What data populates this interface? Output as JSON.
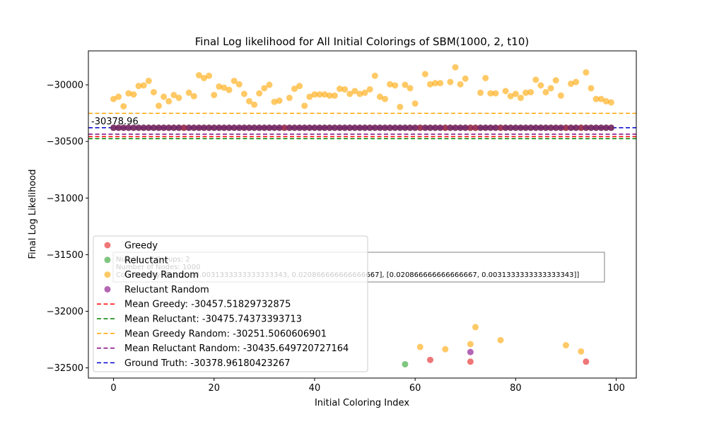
{
  "chart_data": {
    "type": "scatter",
    "title": "Final Log likelihood for All Initial Colorings of SBM(1000, 2, t10)",
    "xlabel": "Initial Coloring Index",
    "ylabel": "Final Log Likelihood",
    "xlim": [
      -5,
      104
    ],
    "ylim": [
      -32590,
      -29700
    ],
    "xticks": [
      0,
      20,
      40,
      60,
      80,
      100
    ],
    "yticks": [
      -30000,
      -30500,
      -31000,
      -31500,
      -32000,
      -32500
    ],
    "grid": false,
    "legend_position": "lower-left",
    "series": [
      {
        "name": "Greedy",
        "kind": "points",
        "color": "#e41a1c",
        "x": [
          0,
          1,
          2,
          3,
          4,
          5,
          6,
          7,
          8,
          9,
          10,
          11,
          12,
          13,
          14,
          15,
          16,
          17,
          18,
          19,
          20,
          21,
          22,
          23,
          24,
          25,
          26,
          27,
          28,
          29,
          30,
          31,
          32,
          33,
          34,
          35,
          36,
          37,
          38,
          39,
          40,
          41,
          42,
          43,
          44,
          45,
          46,
          47,
          48,
          49,
          50,
          51,
          52,
          53,
          54,
          55,
          56,
          57,
          58,
          59,
          60,
          61,
          62,
          63,
          64,
          65,
          66,
          67,
          68,
          69,
          70,
          71,
          72,
          73,
          74,
          75,
          76,
          77,
          78,
          79,
          80,
          81,
          82,
          83,
          84,
          85,
          86,
          87,
          88,
          89,
          90,
          91,
          92,
          93,
          94,
          95,
          96,
          97,
          98,
          99,
          63,
          71,
          94
        ],
        "y": [
          -30379,
          -30379,
          -30379,
          -30379,
          -30379,
          -30379,
          -30379,
          -30379,
          -30379,
          -30379,
          -30379,
          -30379,
          -30379,
          -30379,
          -30379,
          -30379,
          -30379,
          -30379,
          -30379,
          -30379,
          -30379,
          -30379,
          -30379,
          -30379,
          -30379,
          -30379,
          -30379,
          -30379,
          -30379,
          -30379,
          -30379,
          -30379,
          -30379,
          -30379,
          -30379,
          -30379,
          -30379,
          -30379,
          -30379,
          -30379,
          -30379,
          -30379,
          -30379,
          -30379,
          -30379,
          -30379,
          -30379,
          -30379,
          -30379,
          -30379,
          -30379,
          -30379,
          -30379,
          -30379,
          -30379,
          -30379,
          -30379,
          -30379,
          -30379,
          -30379,
          -30379,
          -30379,
          -30379,
          -30379,
          -30379,
          -30379,
          -30379,
          -30379,
          -30379,
          -30379,
          -30379,
          -30379,
          -30379,
          -30379,
          -30379,
          -30379,
          -30379,
          -30379,
          -30379,
          -30379,
          -30379,
          -30379,
          -30379,
          -30379,
          -30379,
          -30379,
          -30379,
          -30379,
          -30379,
          -30379,
          -30379,
          -30379,
          -30379,
          -30379,
          -30379,
          -30379,
          -30379,
          -30379,
          -30379,
          -30379,
          -32430,
          -32445,
          -32445
        ]
      },
      {
        "name": "Reluctant",
        "kind": "points",
        "color": "#2ca02c",
        "x": [
          0,
          1,
          2,
          3,
          4,
          5,
          6,
          7,
          8,
          9,
          10,
          11,
          12,
          13,
          14,
          15,
          16,
          17,
          18,
          19,
          20,
          21,
          22,
          23,
          24,
          25,
          26,
          27,
          28,
          29,
          30,
          31,
          32,
          33,
          34,
          35,
          36,
          37,
          38,
          39,
          40,
          41,
          42,
          43,
          44,
          45,
          46,
          47,
          48,
          49,
          50,
          51,
          52,
          53,
          54,
          55,
          56,
          57,
          58,
          59,
          60,
          61,
          62,
          63,
          64,
          65,
          66,
          67,
          68,
          69,
          70,
          71,
          72,
          73,
          74,
          75,
          76,
          77,
          78,
          79,
          80,
          81,
          82,
          83,
          84,
          85,
          86,
          87,
          88,
          89,
          90,
          91,
          92,
          93,
          94,
          95,
          96,
          97,
          98,
          99,
          58
        ],
        "y": [
          -30379,
          -30379,
          -30379,
          -30379,
          -30379,
          -30379,
          -30379,
          -30379,
          -30379,
          -30379,
          -30379,
          -30379,
          -30379,
          -30379,
          -30379,
          -30379,
          -30379,
          -30379,
          -30379,
          -30379,
          -30379,
          -30379,
          -30379,
          -30379,
          -30379,
          -30379,
          -30379,
          -30379,
          -30379,
          -30379,
          -30379,
          -30379,
          -30379,
          -30379,
          -30379,
          -30379,
          -30379,
          -30379,
          -30379,
          -30379,
          -30379,
          -30379,
          -30379,
          -30379,
          -30379,
          -30379,
          -30379,
          -30379,
          -30379,
          -30379,
          -30379,
          -30379,
          -30379,
          -30379,
          -30379,
          -30379,
          -30379,
          -30379,
          -30379,
          -30379,
          -30379,
          -30379,
          -30379,
          -30379,
          -30379,
          -30379,
          -30379,
          -30379,
          -30379,
          -30379,
          -30379,
          -30379,
          -30379,
          -30379,
          -30379,
          -30379,
          -30379,
          -30379,
          -30379,
          -30379,
          -30379,
          -30379,
          -30379,
          -30379,
          -30379,
          -30379,
          -30379,
          -30379,
          -30379,
          -30379,
          -30379,
          -30379,
          -30379,
          -30379,
          -30379,
          -30379,
          -30379,
          -30379,
          -30379,
          -30379,
          -32468
        ]
      },
      {
        "name": "Greedy Random",
        "kind": "points",
        "color": "#ffa500",
        "x": [
          0,
          1,
          2,
          3,
          4,
          5,
          6,
          7,
          8,
          9,
          10,
          11,
          12,
          13,
          14,
          15,
          16,
          17,
          18,
          19,
          20,
          21,
          22,
          23,
          24,
          25,
          26,
          27,
          28,
          29,
          30,
          31,
          32,
          33,
          34,
          35,
          36,
          37,
          38,
          39,
          40,
          41,
          42,
          43,
          44,
          45,
          46,
          47,
          48,
          49,
          50,
          51,
          52,
          53,
          54,
          55,
          56,
          57,
          58,
          59,
          60,
          61,
          62,
          63,
          64,
          65,
          66,
          67,
          68,
          69,
          70,
          71,
          72,
          73,
          74,
          75,
          76,
          77,
          78,
          79,
          80,
          81,
          82,
          83,
          84,
          85,
          86,
          87,
          88,
          89,
          90,
          91,
          92,
          93,
          94,
          95,
          96,
          97,
          98,
          99,
          61,
          66,
          71,
          72,
          77,
          90,
          93
        ],
        "y": [
          -30125,
          -30105,
          -30190,
          -30075,
          -30085,
          -30010,
          -30005,
          -29965,
          -30065,
          -30185,
          -30105,
          -30145,
          -30090,
          -30115,
          -30380,
          -30070,
          -30100,
          -29915,
          -29940,
          -29920,
          -30090,
          -30015,
          -30025,
          -30045,
          -29965,
          -29995,
          -30080,
          -30145,
          -30175,
          -30075,
          -30030,
          -30000,
          -30150,
          -30140,
          -30380,
          -30115,
          -30035,
          -30010,
          -30185,
          -30105,
          -30085,
          -30085,
          -30085,
          -30095,
          -30095,
          -30035,
          -30040,
          -30080,
          -30055,
          -30080,
          -30070,
          -30040,
          -29920,
          -30105,
          -30125,
          -29995,
          -30005,
          -30195,
          -30000,
          -30030,
          -30165,
          -30380,
          -29905,
          -29995,
          -29985,
          -29985,
          -30380,
          -29975,
          -29845,
          -29995,
          -29945,
          -30380,
          -30380,
          -30070,
          -29940,
          -30075,
          -30075,
          -30380,
          -30055,
          -30100,
          -30080,
          -30115,
          -30070,
          -30065,
          -29955,
          -30005,
          -30065,
          -30030,
          -29960,
          -30095,
          -30380,
          -29990,
          -29975,
          -30380,
          -29890,
          -30030,
          -30125,
          -30125,
          -30145,
          -30155,
          -32315,
          -32335,
          -32290,
          -32140,
          -32255,
          -32300,
          -32355
        ]
      },
      {
        "name": "Reluctant Random",
        "kind": "points",
        "color": "#800080",
        "x": [
          0,
          1,
          2,
          3,
          4,
          5,
          6,
          7,
          8,
          9,
          10,
          11,
          12,
          13,
          14,
          15,
          16,
          17,
          18,
          19,
          20,
          21,
          22,
          23,
          24,
          25,
          26,
          27,
          28,
          29,
          30,
          31,
          32,
          33,
          34,
          35,
          36,
          37,
          38,
          39,
          40,
          41,
          42,
          43,
          44,
          45,
          46,
          47,
          48,
          49,
          50,
          51,
          52,
          53,
          54,
          55,
          56,
          57,
          58,
          59,
          60,
          61,
          62,
          63,
          64,
          65,
          66,
          67,
          68,
          69,
          70,
          71,
          72,
          73,
          74,
          75,
          76,
          77,
          78,
          79,
          80,
          81,
          82,
          83,
          84,
          85,
          86,
          87,
          88,
          89,
          90,
          91,
          92,
          93,
          94,
          95,
          96,
          97,
          98,
          99,
          71
        ],
        "y": [
          -30379,
          -30379,
          -30379,
          -30379,
          -30379,
          -30379,
          -30379,
          -30379,
          -30379,
          -30379,
          -30379,
          -30379,
          -30379,
          -30379,
          -30379,
          -30379,
          -30379,
          -30379,
          -30379,
          -30379,
          -30379,
          -30379,
          -30379,
          -30379,
          -30379,
          -30379,
          -30379,
          -30379,
          -30379,
          -30379,
          -30379,
          -30379,
          -30379,
          -30379,
          -30379,
          -30379,
          -30379,
          -30379,
          -30379,
          -30379,
          -30379,
          -30379,
          -30379,
          -30379,
          -30379,
          -30379,
          -30379,
          -30379,
          -30379,
          -30379,
          -30379,
          -30379,
          -30379,
          -30379,
          -30379,
          -30379,
          -30379,
          -30379,
          -30379,
          -30379,
          -30379,
          -30379,
          -30379,
          -30379,
          -30379,
          -30379,
          -30379,
          -30379,
          -30379,
          -30379,
          -30379,
          -30379,
          -30379,
          -30379,
          -30379,
          -30379,
          -30379,
          -30379,
          -30379,
          -30379,
          -30379,
          -30379,
          -30379,
          -30379,
          -30379,
          -30379,
          -30379,
          -30379,
          -30379,
          -30379,
          -30379,
          -30379,
          -30379,
          -30379,
          -30379,
          -30379,
          -30379,
          -30379,
          -30379,
          -30379,
          -32360
        ]
      },
      {
        "name": "Mean Greedy: -30457.51829732875",
        "kind": "hline",
        "color": "#ff0000",
        "y": -30457.51829732875
      },
      {
        "name": "Mean Reluctant: -30475.74373393713",
        "kind": "hline",
        "color": "#008000",
        "y": -30475.74373393713
      },
      {
        "name": "Mean Greedy Random: -30251.5060606901",
        "kind": "hline",
        "color": "#ffa500",
        "y": -30251.5060606901
      },
      {
        "name": "Mean Reluctant Random: -30435.649720727164",
        "kind": "hline",
        "color": "#800080",
        "y": -30435.649720727164
      },
      {
        "name": "Ground Truth: -30378.96180423267",
        "kind": "hline",
        "color": "#0000cd",
        "y": -30378.96180423267
      }
    ],
    "annotation": "-30378.96",
    "info_box": [
      "Number of Groups: 2",
      "Number of Nodes: 1000",
      "Connectivity Matrix: [[0.0031333333333333343, 0.020866666666666667], [0.020866666666666667, 0.0031333333333333343]]"
    ]
  }
}
